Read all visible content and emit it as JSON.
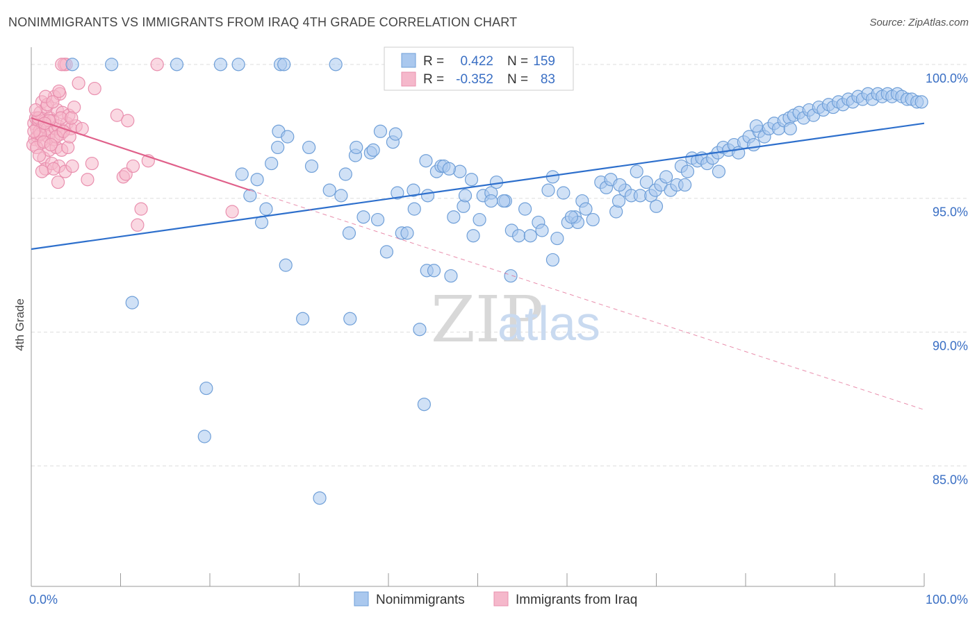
{
  "title": "NONIMMIGRANTS VS IMMIGRANTS FROM IRAQ 4TH GRADE CORRELATION CHART",
  "source": "Source: ZipAtlas.com",
  "watermark": {
    "zip": "ZIP",
    "atlas": "atlas"
  },
  "colors": {
    "blue_fill": "#aac8ee",
    "blue_stroke": "#6f9fd8",
    "blue_line": "#2d6fcc",
    "pink_fill": "#f5b8cb",
    "pink_stroke": "#e98fae",
    "pink_line": "#e0608a",
    "axis_label": "#3a6fc4",
    "grid": "#dddddd"
  },
  "legend": {
    "rows": [
      {
        "r_label": "R =",
        "r_value": "0.422",
        "n_label": "N =",
        "n_value": "159",
        "series": "blue"
      },
      {
        "r_label": "R =",
        "r_value": "-0.352",
        "n_label": "N =",
        "n_value": "83",
        "series": "pink"
      }
    ]
  },
  "bottom_legend": [
    "Nonimmigrants",
    "Immigrants from Iraq"
  ],
  "chart_data": {
    "type": "scatter",
    "title": "NONIMMIGRANTS VS IMMIGRANTS FROM IRAQ 4TH GRADE CORRELATION CHART",
    "xlabel": "",
    "ylabel": "4th Grade",
    "xlim": [
      0,
      100
    ],
    "ylim": [
      80.5,
      100.8
    ],
    "x_tick_labels": [
      "0.0%",
      "100.0%"
    ],
    "y_ticks": [
      85,
      90,
      95,
      100
    ],
    "y_tick_labels": [
      "85.0%",
      "90.0%",
      "95.0%",
      "100.0%"
    ],
    "grid": true,
    "legend_position": "top-center",
    "series": [
      {
        "name": "Nonimmigrants",
        "color": "blue",
        "trend": {
          "x": [
            0,
            100
          ],
          "y": [
            93.1,
            97.8
          ],
          "style": "solid"
        },
        "points": [
          [
            4.6,
            100
          ],
          [
            9.0,
            100
          ],
          [
            16.3,
            100
          ],
          [
            21.2,
            100
          ],
          [
            23.2,
            100
          ],
          [
            27.9,
            100
          ],
          [
            28.3,
            100
          ],
          [
            34.1,
            100
          ],
          [
            11.3,
            91.1
          ],
          [
            19.6,
            87.9
          ],
          [
            19.4,
            86.1
          ],
          [
            23.6,
            95.9
          ],
          [
            24.5,
            95.1
          ],
          [
            25.3,
            95.7
          ],
          [
            25.8,
            94.1
          ],
          [
            26.3,
            94.6
          ],
          [
            27.7,
            97.5
          ],
          [
            28.7,
            97.3
          ],
          [
            27.6,
            96.9
          ],
          [
            26.9,
            96.3
          ],
          [
            28.5,
            92.5
          ],
          [
            30.4,
            90.5
          ],
          [
            31.1,
            96.9
          ],
          [
            31.4,
            96.2
          ],
          [
            32.3,
            83.8
          ],
          [
            33.4,
            95.3
          ],
          [
            34.7,
            95.1
          ],
          [
            35.6,
            93.7
          ],
          [
            35.7,
            90.5
          ],
          [
            35.2,
            95.9
          ],
          [
            36.3,
            96.6
          ],
          [
            36.4,
            96.9
          ],
          [
            37.2,
            94.3
          ],
          [
            38.0,
            96.7
          ],
          [
            38.3,
            96.8
          ],
          [
            39.1,
            97.5
          ],
          [
            39.8,
            93.0
          ],
          [
            40.5,
            97.1
          ],
          [
            40.8,
            97.4
          ],
          [
            41.5,
            93.7
          ],
          [
            42.1,
            93.7
          ],
          [
            42.9,
            94.6
          ],
          [
            42.8,
            95.3
          ],
          [
            44.2,
            96.4
          ],
          [
            43.5,
            90.1
          ],
          [
            44.0,
            87.3
          ],
          [
            44.4,
            95.1
          ],
          [
            44.3,
            92.3
          ],
          [
            45.1,
            92.3
          ],
          [
            45.4,
            96.0
          ],
          [
            45.9,
            96.2
          ],
          [
            46.2,
            96.2
          ],
          [
            47.0,
            92.1
          ],
          [
            47.3,
            94.3
          ],
          [
            48.0,
            96.0
          ],
          [
            48.4,
            94.7
          ],
          [
            48.6,
            95.1
          ],
          [
            49.3,
            95.7
          ],
          [
            50.2,
            94.2
          ],
          [
            50.6,
            95.1
          ],
          [
            51.5,
            95.2
          ],
          [
            51.5,
            94.9
          ],
          [
            52.1,
            95.6
          ],
          [
            53.1,
            94.9
          ],
          [
            53.8,
            93.8
          ],
          [
            53.7,
            92.1
          ],
          [
            54.6,
            93.6
          ],
          [
            55.3,
            94.6
          ],
          [
            55.9,
            93.6
          ],
          [
            56.8,
            94.1
          ],
          [
            57.9,
            95.3
          ],
          [
            58.4,
            95.8
          ],
          [
            58.9,
            93.5
          ],
          [
            58.4,
            92.7
          ],
          [
            59.6,
            95.2
          ],
          [
            60.1,
            94.1
          ],
          [
            60.9,
            94.3
          ],
          [
            61.2,
            94.1
          ],
          [
            61.7,
            94.9
          ],
          [
            62.1,
            94.6
          ],
          [
            62.9,
            94.2
          ],
          [
            63.8,
            95.6
          ],
          [
            64.4,
            95.4
          ],
          [
            64.9,
            95.7
          ],
          [
            65.5,
            94.5
          ],
          [
            65.8,
            94.9
          ],
          [
            66.5,
            95.3
          ],
          [
            67.2,
            95.1
          ],
          [
            67.8,
            96.0
          ],
          [
            68.2,
            95.1
          ],
          [
            68.9,
            95.6
          ],
          [
            69.4,
            95.1
          ],
          [
            69.9,
            95.3
          ],
          [
            70.5,
            95.5
          ],
          [
            71.1,
            95.8
          ],
          [
            71.6,
            95.3
          ],
          [
            72.3,
            95.5
          ],
          [
            72.8,
            96.2
          ],
          [
            73.5,
            96.0
          ],
          [
            74.0,
            96.5
          ],
          [
            74.6,
            96.4
          ],
          [
            75.1,
            96.5
          ],
          [
            75.7,
            96.3
          ],
          [
            76.3,
            96.5
          ],
          [
            76.9,
            96.7
          ],
          [
            77.5,
            96.9
          ],
          [
            78.1,
            96.8
          ],
          [
            78.7,
            97.0
          ],
          [
            79.2,
            96.7
          ],
          [
            79.8,
            97.1
          ],
          [
            80.4,
            97.3
          ],
          [
            80.9,
            97.0
          ],
          [
            81.5,
            97.5
          ],
          [
            82.1,
            97.3
          ],
          [
            82.6,
            97.6
          ],
          [
            83.2,
            97.8
          ],
          [
            83.7,
            97.6
          ],
          [
            84.3,
            97.9
          ],
          [
            84.9,
            98.0
          ],
          [
            85.4,
            98.1
          ],
          [
            86.0,
            98.2
          ],
          [
            86.5,
            98.0
          ],
          [
            87.1,
            98.3
          ],
          [
            87.6,
            98.1
          ],
          [
            88.2,
            98.4
          ],
          [
            88.7,
            98.3
          ],
          [
            89.3,
            98.5
          ],
          [
            89.8,
            98.4
          ],
          [
            90.4,
            98.6
          ],
          [
            90.9,
            98.5
          ],
          [
            91.5,
            98.7
          ],
          [
            92.0,
            98.6
          ],
          [
            92.6,
            98.8
          ],
          [
            93.1,
            98.7
          ],
          [
            93.7,
            98.9
          ],
          [
            94.2,
            98.7
          ],
          [
            94.8,
            98.9
          ],
          [
            95.3,
            98.8
          ],
          [
            95.9,
            98.9
          ],
          [
            96.4,
            98.8
          ],
          [
            97.0,
            98.9
          ],
          [
            97.5,
            98.8
          ],
          [
            98.1,
            98.7
          ],
          [
            98.6,
            98.7
          ],
          [
            99.2,
            98.6
          ],
          [
            99.7,
            98.6
          ],
          [
            85.0,
            97.6
          ],
          [
            81.2,
            97.7
          ],
          [
            77.0,
            96.0
          ],
          [
            73.2,
            95.5
          ],
          [
            70.0,
            94.7
          ],
          [
            65.9,
            95.5
          ],
          [
            60.5,
            94.3
          ],
          [
            57.2,
            93.8
          ],
          [
            52.9,
            94.9
          ],
          [
            49.5,
            93.6
          ],
          [
            46.8,
            96.1
          ],
          [
            41.0,
            95.2
          ],
          [
            38.8,
            94.2
          ]
        ]
      },
      {
        "name": "Immigrants from Iraq",
        "color": "pink",
        "trend": {
          "x": [
            0,
            24.5
          ],
          "y": [
            98.0,
            95.3
          ],
          "style": "solid",
          "extended_x": [
            24.5,
            100
          ],
          "extended_y": [
            95.3,
            87.1
          ],
          "extended_style": "dashed"
        },
        "points": [
          [
            0.3,
            97.8
          ],
          [
            0.4,
            97.2
          ],
          [
            0.5,
            98.0
          ],
          [
            0.6,
            97.6
          ],
          [
            0.7,
            97.3
          ],
          [
            0.8,
            97.9
          ],
          [
            0.9,
            97.5
          ],
          [
            1.0,
            98.2
          ],
          [
            1.1,
            97.1
          ],
          [
            1.2,
            98.6
          ],
          [
            1.3,
            97.7
          ],
          [
            1.4,
            96.5
          ],
          [
            1.5,
            97.9
          ],
          [
            1.6,
            96.1
          ],
          [
            1.7,
            98.4
          ],
          [
            1.8,
            97.6
          ],
          [
            1.9,
            97.3
          ],
          [
            2.0,
            96.8
          ],
          [
            2.1,
            98.0
          ],
          [
            2.2,
            97.5
          ],
          [
            2.3,
            96.3
          ],
          [
            2.4,
            97.9
          ],
          [
            2.5,
            97.2
          ],
          [
            2.6,
            98.8
          ],
          [
            2.7,
            97.6
          ],
          [
            2.8,
            96.9
          ],
          [
            2.9,
            98.3
          ],
          [
            3.0,
            97.7
          ],
          [
            3.1,
            96.2
          ],
          [
            3.2,
            98.9
          ],
          [
            3.3,
            97.4
          ],
          [
            3.4,
            96.8
          ],
          [
            3.5,
            98.2
          ],
          [
            3.6,
            97.5
          ],
          [
            3.7,
            100
          ],
          [
            3.8,
            96.0
          ],
          [
            3.9,
            100
          ],
          [
            4.0,
            97.8
          ],
          [
            4.2,
            98.1
          ],
          [
            4.4,
            97.6
          ],
          [
            4.6,
            96.2
          ],
          [
            4.8,
            98.4
          ],
          [
            5.0,
            97.7
          ],
          [
            5.3,
            99.3
          ],
          [
            5.7,
            97.6
          ],
          [
            6.3,
            95.7
          ],
          [
            6.8,
            96.3
          ],
          [
            7.1,
            99.1
          ],
          [
            9.6,
            98.1
          ],
          [
            10.3,
            95.8
          ],
          [
            10.6,
            95.9
          ],
          [
            10.8,
            97.9
          ],
          [
            11.4,
            96.2
          ],
          [
            11.9,
            94.0
          ],
          [
            12.3,
            94.6
          ],
          [
            13.1,
            96.4
          ],
          [
            14.1,
            100
          ],
          [
            22.5,
            94.5
          ],
          [
            0.2,
            97.0
          ],
          [
            0.6,
            96.9
          ],
          [
            1.0,
            97.4
          ],
          [
            1.8,
            98.5
          ],
          [
            2.5,
            96.1
          ],
          [
            3.3,
            98.0
          ],
          [
            0.8,
            98.0
          ],
          [
            1.4,
            97.1
          ],
          [
            2.0,
            97.9
          ],
          [
            2.8,
            97.3
          ],
          [
            0.5,
            98.3
          ],
          [
            1.2,
            96.0
          ],
          [
            1.6,
            98.8
          ],
          [
            2.2,
            97.0
          ],
          [
            3.0,
            95.6
          ],
          [
            3.6,
            97.5
          ],
          [
            4.1,
            96.9
          ],
          [
            4.5,
            98.0
          ],
          [
            0.3,
            97.5
          ],
          [
            0.9,
            96.6
          ],
          [
            1.5,
            97.8
          ],
          [
            2.4,
            98.6
          ],
          [
            3.1,
            99.0
          ],
          [
            3.4,
            100
          ],
          [
            4.3,
            97.3
          ]
        ]
      }
    ]
  }
}
